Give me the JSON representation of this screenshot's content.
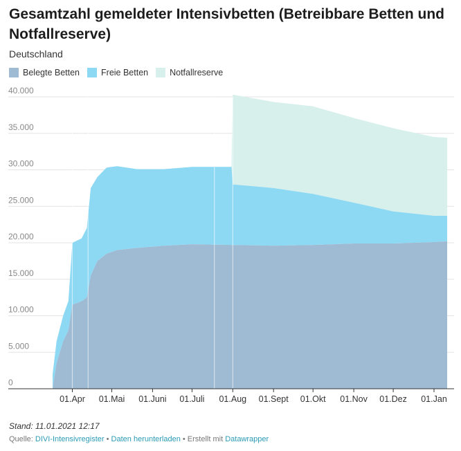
{
  "title": "Gesamtzahl gemeldeter Intensivbetten (Betreibbare Betten und Notfallreserve)",
  "subtitle": "Deutschland",
  "footer": {
    "stand": "Stand: 11.01.2021 12:17",
    "quelle_label": "Quelle:",
    "quelle_link": "DIVI-Intensivregister",
    "sep1": " • ",
    "download_link": "Daten herunterladen",
    "sep2": " • Erstellt mit ",
    "created_link": "Datawrapper"
  },
  "chart_data": {
    "type": "area",
    "stacked": true,
    "x_axis_type": "date",
    "xlim": [
      "2020-03-17",
      "2021-01-11"
    ],
    "ylim": [
      0,
      40000
    ],
    "y_ticks": [
      0,
      5000,
      10000,
      15000,
      20000,
      25000,
      30000,
      35000,
      40000
    ],
    "y_tick_labels": [
      "0",
      "5.000",
      "10.000",
      "15.000",
      "20.000",
      "25.000",
      "30.000",
      "35.000",
      "40.000"
    ],
    "x_ticks": [
      "2020-04-01",
      "2020-05-01",
      "2020-06-01",
      "2020-07-01",
      "2020-08-01",
      "2020-09-01",
      "2020-10-01",
      "2020-11-01",
      "2020-12-01",
      "2021-01-01"
    ],
    "x_tick_labels": [
      "01.Apr",
      "01.Mai",
      "01.Juni",
      "01.Juli",
      "01.Aug",
      "01.Sept",
      "01.Okt",
      "01.Nov",
      "01.Dez",
      "01.Jan"
    ],
    "grid": true,
    "legend_position": "top-left",
    "series": [
      {
        "name": "Belegte Betten",
        "color": "#9fbad3",
        "points": [
          [
            "2020-03-17",
            0
          ],
          [
            "2020-03-20",
            3500
          ],
          [
            "2020-03-25",
            6500
          ],
          [
            "2020-03-29",
            8000
          ],
          [
            "2020-04-01",
            11500
          ],
          [
            "2020-04-08",
            12000
          ],
          [
            "2020-04-12",
            12500
          ],
          [
            "2020-04-15",
            15500
          ],
          [
            "2020-04-20",
            17500
          ],
          [
            "2020-04-27",
            18500
          ],
          [
            "2020-05-05",
            19000
          ],
          [
            "2020-05-20",
            19300
          ],
          [
            "2020-06-10",
            19600
          ],
          [
            "2020-07-01",
            19800
          ],
          [
            "2020-08-01",
            19700
          ],
          [
            "2020-09-01",
            19600
          ],
          [
            "2020-10-01",
            19700
          ],
          [
            "2020-11-01",
            19900
          ],
          [
            "2020-12-01",
            19900
          ],
          [
            "2021-01-01",
            20100
          ],
          [
            "2021-01-11",
            20200
          ]
        ]
      },
      {
        "name": "Freie Betten",
        "color": "#8dd9f4",
        "points": [
          [
            "2020-03-17",
            2000
          ],
          [
            "2020-03-20",
            3000
          ],
          [
            "2020-03-25",
            3500
          ],
          [
            "2020-03-29",
            4000
          ],
          [
            "2020-04-01",
            8500
          ],
          [
            "2020-04-08",
            8600
          ],
          [
            "2020-04-12",
            9500
          ],
          [
            "2020-04-15",
            12000
          ],
          [
            "2020-04-20",
            11500
          ],
          [
            "2020-04-27",
            11800
          ],
          [
            "2020-05-05",
            11500
          ],
          [
            "2020-05-20",
            10800
          ],
          [
            "2020-06-10",
            10500
          ],
          [
            "2020-07-01",
            10600
          ],
          [
            "2020-07-31",
            10700
          ],
          [
            "2020-08-01",
            8300
          ],
          [
            "2020-09-01",
            7900
          ],
          [
            "2020-10-01",
            7000
          ],
          [
            "2020-11-01",
            5600
          ],
          [
            "2020-12-01",
            4400
          ],
          [
            "2021-01-01",
            3600
          ],
          [
            "2021-01-11",
            3500
          ]
        ]
      },
      {
        "name": "Notfallreserve",
        "color": "#d7f0ec",
        "points": [
          [
            "2020-07-31",
            0
          ],
          [
            "2020-08-01",
            12300
          ],
          [
            "2020-09-01",
            11800
          ],
          [
            "2020-10-01",
            12000
          ],
          [
            "2020-11-01",
            11600
          ],
          [
            "2020-12-01",
            11400
          ],
          [
            "2021-01-01",
            10800
          ],
          [
            "2021-01-11",
            10700
          ]
        ]
      }
    ],
    "reference_lines_x": [
      "2020-04-01",
      "2020-04-13",
      "2020-07-18",
      "2020-08-01"
    ]
  }
}
